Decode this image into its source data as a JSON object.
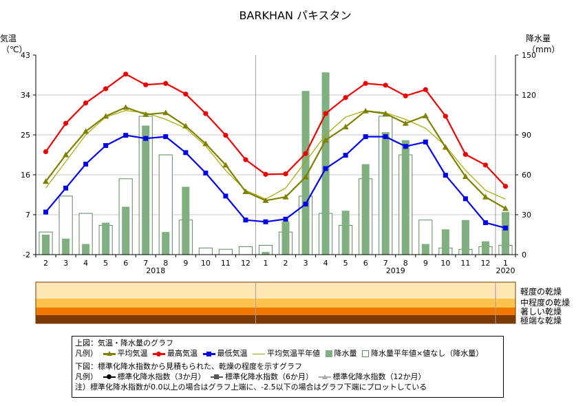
{
  "title": "BARKHAN パキスタン",
  "left_axis": {
    "label_line1": "気温",
    "label_line2": "（℃）",
    "ticks": [
      "43",
      "34",
      "25",
      "16",
      "7",
      "-2"
    ]
  },
  "right_axis": {
    "label_line1": "降水量",
    "label_line2": "（mm）",
    "ticks": [
      "150",
      "120",
      "90",
      "60",
      "30",
      "0"
    ]
  },
  "drought_levels": [
    "軽度の乾燥",
    "中程度の乾燥",
    "著しい乾燥",
    "極端な乾燥"
  ],
  "colors": {
    "mean": "#808000",
    "max": "#ee0000",
    "min": "#0000ee",
    "normal": "#a6a600",
    "precip": "#80b080",
    "precip_edge": "#5a8a5a",
    "band1": "#ffe6b3",
    "band2": "#ffc34d",
    "band3": "#f07800",
    "band4": "#7a3a00"
  },
  "legend": {
    "line1": "上図：気温・降水量のグラフ",
    "prefix": "凡例）",
    "mean": "平均気温",
    "max": "最高気温",
    "min": "最低気温",
    "normal": "平均気温平年値",
    "precip": "降水量",
    "precip_normal": "降水量平年値",
    "nodata": "×値なし（降水量）",
    "line3": "下図：標準化降水指数から見積もられた、乾燥の程度を示すグラフ",
    "spi3": "標準化降水指数（3か月）",
    "spi6": "標準化降水指数（6か月）",
    "spi12": "標準化降水指数（12か月）",
    "note": "注）標準化降水指数が0.0以上の場合はグラフ上端に、-2.5以下の場合はグラフ下端にプロットしている"
  },
  "chart_data": {
    "type": "line",
    "title": "BARKHAN パキスタン",
    "x": [
      "2",
      "3",
      "4",
      "5",
      "6",
      "7",
      "8",
      "9",
      "10",
      "11",
      "12",
      "1",
      "2",
      "3",
      "4",
      "5",
      "6",
      "7",
      "8",
      "9",
      "10",
      "11",
      "12",
      "1"
    ],
    "year_labels": [
      {
        "label": "2018",
        "at_index": 5.5
      },
      {
        "label": "2019",
        "at_index": 17.5
      },
      {
        "label": "2020",
        "at_index": 23
      }
    ],
    "year_boundaries": [
      11,
      23
    ],
    "ylim_temperature": [
      -2,
      43
    ],
    "ylim_precipitation": [
      0,
      150
    ],
    "series": [
      {
        "name": "平均気温",
        "axis": "left",
        "values": [
          14.5,
          20.5,
          25.8,
          29.2,
          31.2,
          29.6,
          30.0,
          27.0,
          23.0,
          18.2,
          12.2,
          10.2,
          11.0,
          15.5,
          23.8,
          26.8,
          30.4,
          29.8,
          27.6,
          29.3,
          22.2,
          15.6,
          11.0,
          8.4
        ]
      },
      {
        "name": "最高気温",
        "axis": "left",
        "values": [
          21.2,
          27.6,
          32.2,
          35.4,
          38.7,
          36.3,
          36.6,
          34.2,
          29.8,
          24.9,
          19.4,
          16.1,
          16.2,
          20.8,
          29.8,
          33.4,
          36.6,
          36.2,
          33.8,
          35.2,
          29.2,
          20.6,
          18.2,
          13.4
        ]
      },
      {
        "name": "最低気温",
        "axis": "left",
        "values": [
          7.6,
          13.0,
          18.4,
          22.6,
          24.9,
          24.2,
          24.6,
          21.0,
          16.4,
          11.2,
          5.8,
          5.4,
          6.0,
          9.4,
          17.4,
          20.4,
          24.6,
          24.6,
          22.4,
          23.4,
          15.9,
          10.6,
          5.2,
          4.0
        ]
      },
      {
        "name": "平均気温平年値",
        "axis": "left",
        "values": [
          13.0,
          19.0,
          25.0,
          29.0,
          30.5,
          30.0,
          28.5,
          26.5,
          22.5,
          17.0,
          12.5,
          10.5,
          13.0,
          19.0,
          25.0,
          29.0,
          30.5,
          30.0,
          28.5,
          26.5,
          22.5,
          17.0,
          12.5,
          10.5
        ]
      },
      {
        "name": "降水量",
        "axis": "right",
        "render": "bar",
        "values": [
          15,
          12,
          8,
          24,
          36,
          97,
          17,
          51,
          0,
          0,
          0,
          2,
          25,
          123,
          137,
          33,
          68,
          92,
          86,
          8,
          19,
          26,
          10,
          32
        ]
      },
      {
        "name": "降水量平年値",
        "axis": "right",
        "render": "bar-outline",
        "values": [
          17,
          44,
          31,
          22,
          57,
          104,
          75,
          26,
          5,
          4,
          6,
          7,
          17,
          44,
          31,
          22,
          57,
          104,
          75,
          26,
          5,
          4,
          6,
          7
        ]
      }
    ],
    "drought_index": {
      "levels": [
        "軽度の乾燥",
        "中程度の乾燥",
        "著しい乾燥",
        "極端な乾燥"
      ],
      "series": [
        "標準化降水指数（3か月）",
        "標準化降水指数（6か月）",
        "標準化降水指数（12か月）"
      ]
    },
    "grid": false
  }
}
